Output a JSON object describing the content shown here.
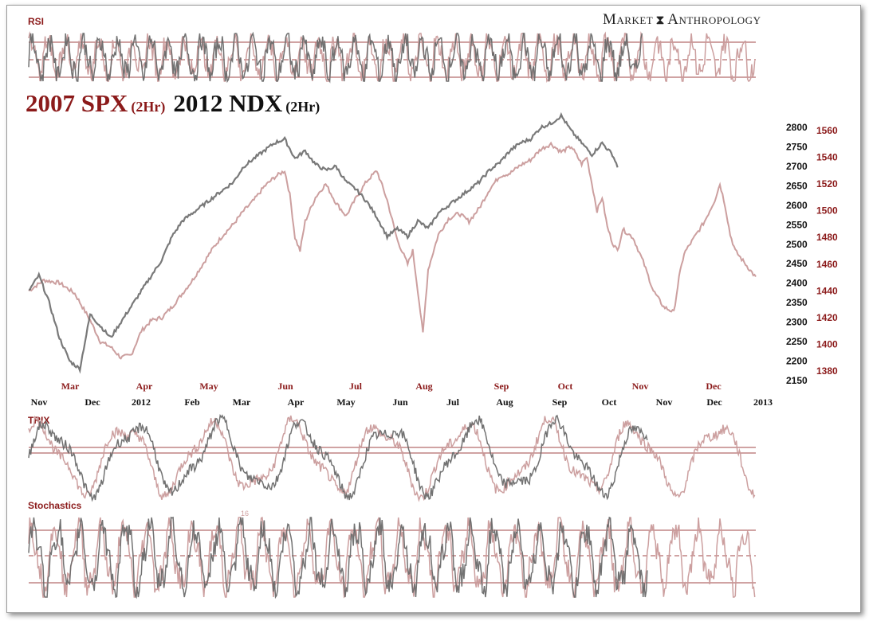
{
  "brand": {
    "left": "Market",
    "right": "Anthropology"
  },
  "title": {
    "series1": "2007 SPX",
    "series1_suffix": "(2Hr)",
    "series2": "2012 NDX",
    "series2_suffix": "(2Hr)"
  },
  "colors": {
    "series_2007": "#c99a9a",
    "series_2012": "#6a6a6a",
    "label_red": "#8b1a1a",
    "guide_line": "#8b1a1a"
  },
  "chart_data": [
    {
      "type": "line",
      "panel": "RSI",
      "title": "RSI",
      "levels": [
        "upper",
        "mid",
        "lower"
      ]
    },
    {
      "type": "line",
      "panel": "main",
      "title": "2007 SPX (2Hr) 2012 NDX (2Hr)",
      "right_axis_black": {
        "ticks": [
          2800,
          2750,
          2700,
          2650,
          2600,
          2550,
          2500,
          2450,
          2400,
          2350,
          2300,
          2250,
          2200,
          2150
        ],
        "range": [
          2150,
          2800
        ]
      },
      "right_axis_red": {
        "ticks": [
          1560,
          1540,
          1520,
          1500,
          1480,
          1460,
          1440,
          1420,
          1400,
          1380
        ],
        "range": [
          1380,
          1560
        ]
      },
      "x_red_months": [
        "Mar",
        "Apr",
        "May",
        "Jun",
        "Jul",
        "Aug",
        "Sep",
        "Oct",
        "Nov",
        "Dec"
      ],
      "x_black_months": [
        "Nov",
        "Dec",
        "2012",
        "Feb",
        "Mar",
        "Apr",
        "May",
        "Jun",
        "Jul",
        "Aug",
        "Sep",
        "Oct",
        "Nov",
        "Dec",
        "2013"
      ],
      "series": [
        {
          "name": "2007 SPX",
          "axis": "red",
          "points": [
            [
              0,
              1440
            ],
            [
              3,
              1448
            ],
            [
              6,
              1446
            ],
            [
              9,
              1438
            ],
            [
              12,
              1418
            ],
            [
              14,
              1402
            ],
            [
              16,
              1398
            ],
            [
              18,
              1390
            ],
            [
              20,
              1392
            ],
            [
              22,
              1410
            ],
            [
              24,
              1418
            ],
            [
              26,
              1420
            ],
            [
              28,
              1428
            ],
            [
              30,
              1438
            ],
            [
              32,
              1448
            ],
            [
              34,
              1460
            ],
            [
              36,
              1472
            ],
            [
              38,
              1482
            ],
            [
              40,
              1490
            ],
            [
              42,
              1500
            ],
            [
              44,
              1508
            ],
            [
              46,
              1518
            ],
            [
              48,
              1525
            ],
            [
              50,
              1530
            ],
            [
              51,
              1512
            ],
            [
              52,
              1480
            ],
            [
              53,
              1470
            ],
            [
              54,
              1492
            ],
            [
              56,
              1510
            ],
            [
              58,
              1520
            ],
            [
              60,
              1506
            ],
            [
              62,
              1496
            ],
            [
              64,
              1510
            ],
            [
              66,
              1522
            ],
            [
              68,
              1530
            ],
            [
              70,
              1508
            ],
            [
              72,
              1478
            ],
            [
              74,
              1460
            ],
            [
              75,
              1470
            ],
            [
              76,
              1440
            ],
            [
              77,
              1408
            ],
            [
              78,
              1456
            ],
            [
              80,
              1482
            ],
            [
              82,
              1494
            ],
            [
              84,
              1498
            ],
            [
              86,
              1492
            ],
            [
              88,
              1502
            ],
            [
              90,
              1516
            ],
            [
              92,
              1526
            ],
            [
              94,
              1528
            ],
            [
              96,
              1534
            ],
            [
              98,
              1538
            ],
            [
              100,
              1546
            ],
            [
              102,
              1550
            ],
            [
              104,
              1544
            ],
            [
              106,
              1548
            ],
            [
              108,
              1535
            ],
            [
              109,
              1540
            ],
            [
              110,
              1520
            ],
            [
              111,
              1500
            ],
            [
              112,
              1510
            ],
            [
              113,
              1488
            ],
            [
              114,
              1476
            ],
            [
              115,
              1470
            ],
            [
              116,
              1486
            ],
            [
              118,
              1480
            ],
            [
              120,
              1462
            ],
            [
              122,
              1440
            ],
            [
              124,
              1428
            ],
            [
              126,
              1424
            ],
            [
              127,
              1450
            ],
            [
              128,
              1468
            ],
            [
              130,
              1480
            ],
            [
              132,
              1492
            ],
            [
              134,
              1508
            ],
            [
              135,
              1520
            ],
            [
              136,
              1504
            ],
            [
              137,
              1482
            ],
            [
              138,
              1470
            ],
            [
              140,
              1460
            ],
            [
              142,
              1450
            ]
          ]
        },
        {
          "name": "2012 NDX",
          "axis": "black",
          "points": [
            [
              0,
              2380
            ],
            [
              2,
              2420
            ],
            [
              4,
              2350
            ],
            [
              6,
              2260
            ],
            [
              8,
              2200
            ],
            [
              10,
              2180
            ],
            [
              12,
              2320
            ],
            [
              14,
              2290
            ],
            [
              16,
              2260
            ],
            [
              18,
              2300
            ],
            [
              20,
              2340
            ],
            [
              22,
              2380
            ],
            [
              24,
              2420
            ],
            [
              26,
              2460
            ],
            [
              28,
              2520
            ],
            [
              30,
              2560
            ],
            [
              32,
              2580
            ],
            [
              34,
              2600
            ],
            [
              36,
              2620
            ],
            [
              38,
              2640
            ],
            [
              40,
              2660
            ],
            [
              42,
              2700
            ],
            [
              44,
              2720
            ],
            [
              46,
              2740
            ],
            [
              48,
              2760
            ],
            [
              50,
              2770
            ],
            [
              51,
              2745
            ],
            [
              52,
              2720
            ],
            [
              54,
              2740
            ],
            [
              56,
              2705
            ],
            [
              58,
              2690
            ],
            [
              60,
              2700
            ],
            [
              62,
              2660
            ],
            [
              64,
              2640
            ],
            [
              66,
              2610
            ],
            [
              68,
              2570
            ],
            [
              70,
              2520
            ],
            [
              72,
              2540
            ],
            [
              74,
              2520
            ],
            [
              76,
              2560
            ],
            [
              78,
              2540
            ],
            [
              80,
              2580
            ],
            [
              82,
              2600
            ],
            [
              84,
              2620
            ],
            [
              86,
              2640
            ],
            [
              88,
              2660
            ],
            [
              90,
              2690
            ],
            [
              92,
              2710
            ],
            [
              94,
              2740
            ],
            [
              96,
              2760
            ],
            [
              98,
              2770
            ],
            [
              100,
              2800
            ],
            [
              102,
              2810
            ],
            [
              104,
              2830
            ],
            [
              106,
              2790
            ],
            [
              108,
              2760
            ],
            [
              110,
              2730
            ],
            [
              112,
              2760
            ],
            [
              114,
              2730
            ],
            [
              115,
              2700
            ]
          ]
        }
      ]
    },
    {
      "type": "line",
      "panel": "TRIX",
      "title": "TRIX",
      "levels": [
        "upper",
        "lower"
      ]
    },
    {
      "type": "line",
      "panel": "Stochastics",
      "title": "Stochastics",
      "annotation": "16",
      "levels": [
        "upper",
        "mid",
        "lower"
      ]
    }
  ]
}
